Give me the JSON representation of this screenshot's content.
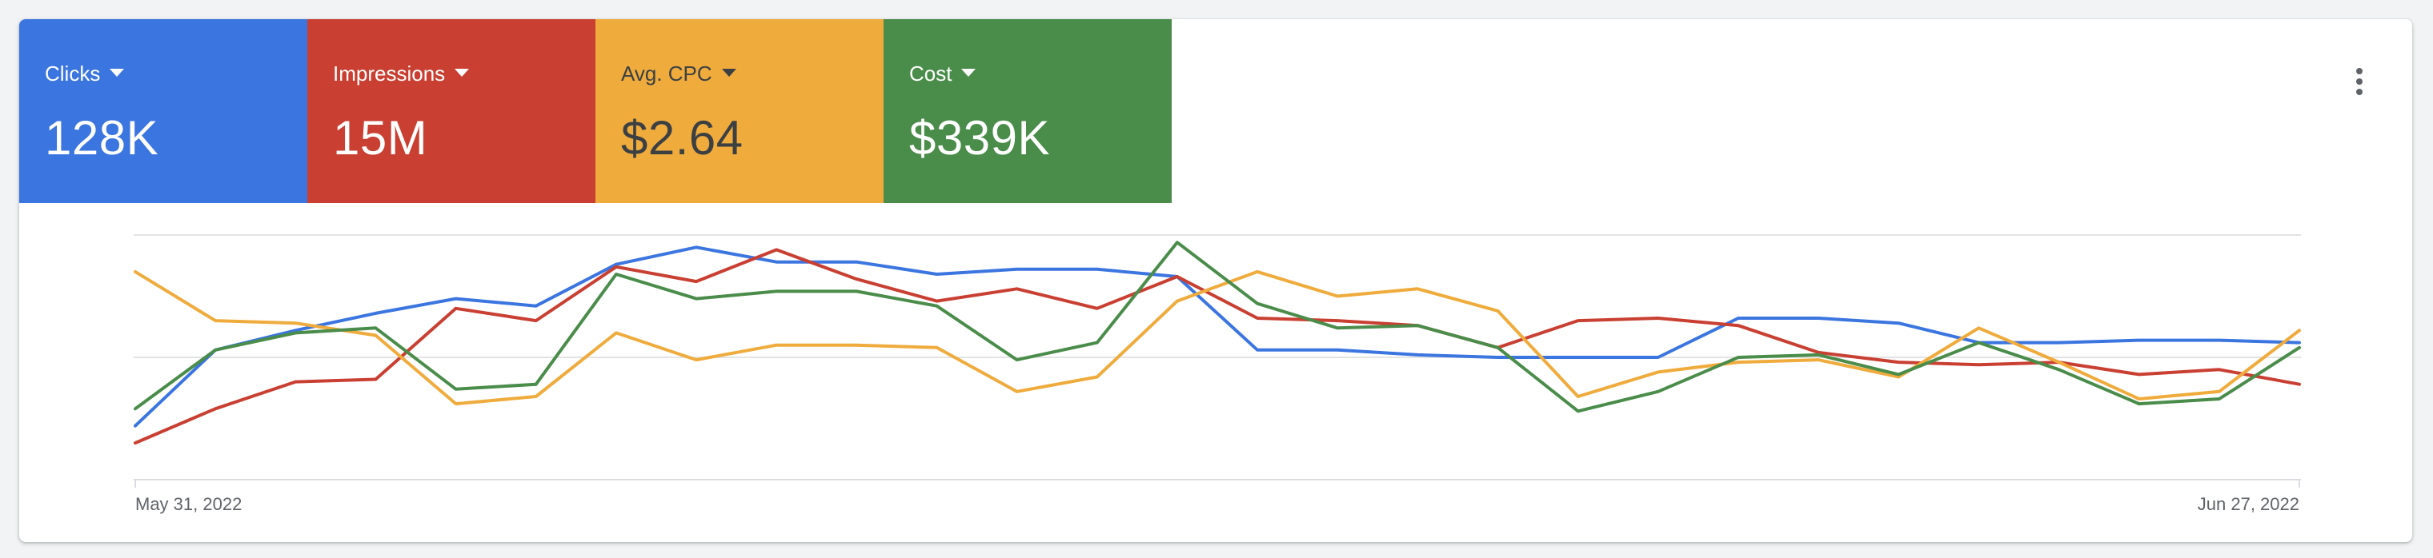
{
  "scorecards": [
    {
      "label": "Clicks",
      "value": "128K",
      "color": "#3b75e0"
    },
    {
      "label": "Impressions",
      "value": "15M",
      "color": "#c93f32"
    },
    {
      "label": "Avg. CPC",
      "value": "$2.64",
      "color": "#efab3c"
    },
    {
      "label": "Cost",
      "value": "$339K",
      "color": "#4a8c4a"
    }
  ],
  "menu": {
    "icon": "more-vert-icon"
  },
  "chart_data": {
    "type": "line",
    "x_start": "May 31, 2022",
    "x_end": "Jun 27, 2022",
    "x_labels": [
      "May 31, 2022",
      "Jun 27, 2022"
    ],
    "ylim": [
      0,
      100
    ],
    "grid": true,
    "series": [
      {
        "name": "Clicks",
        "color": "#3b75e0",
        "values": [
          22,
          53,
          61,
          68,
          74,
          71,
          88,
          95,
          89,
          89,
          84,
          86,
          86,
          83,
          53,
          53,
          51,
          50,
          50,
          50,
          66,
          66,
          64,
          56,
          56,
          57,
          57,
          56
        ]
      },
      {
        "name": "Impressions",
        "color": "#c93f32",
        "values": [
          15,
          29,
          40,
          41,
          70,
          65,
          87,
          81,
          94,
          82,
          73,
          78,
          70,
          83,
          66,
          65,
          63,
          54,
          65,
          66,
          63,
          52,
          48,
          47,
          48,
          43,
          45,
          39
        ]
      },
      {
        "name": "Avg. CPC",
        "color": "#efab3c",
        "values": [
          85,
          65,
          64,
          59,
          31,
          34,
          60,
          49,
          55,
          55,
          54,
          36,
          42,
          73,
          85,
          75,
          78,
          69,
          34,
          44,
          48,
          49,
          42,
          62,
          48,
          33,
          36,
          61
        ]
      },
      {
        "name": "Cost",
        "color": "#4a8c4a",
        "values": [
          29,
          53,
          60,
          62,
          37,
          39,
          84,
          74,
          77,
          77,
          71,
          49,
          56,
          97,
          72,
          62,
          63,
          54,
          28,
          36,
          50,
          51,
          43,
          56,
          45,
          31,
          33,
          54
        ]
      }
    ]
  }
}
